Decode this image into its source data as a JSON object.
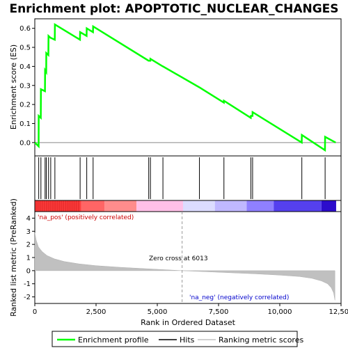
{
  "chart_data": {
    "type": "line",
    "title": "Enrichment plot: APOPTOTIC_NUCLEAR_CHANGES",
    "ylabel_top": "Enrichment score (ES)",
    "ylabel_bottom": "Ranked list metric (PreRanked)",
    "xlabel": "Rank in Ordered Dataset",
    "x_ticks": [
      "0",
      "2,500",
      "5,000",
      "7,500",
      "10,000",
      "12,500"
    ],
    "x_tick_values": [
      0,
      2500,
      5000,
      7500,
      10000,
      12500
    ],
    "es_y_ticks": [
      "0.0",
      "0.1",
      "0.2",
      "0.3",
      "0.4",
      "0.5",
      "0.6"
    ],
    "es_y_tick_values": [
      0.0,
      0.1,
      0.2,
      0.3,
      0.4,
      0.5,
      0.6
    ],
    "metric_y_ticks": [
      "-2",
      "-1",
      "0",
      "1",
      "2",
      "3",
      "4"
    ],
    "metric_y_tick_values": [
      -2,
      -1,
      0,
      1,
      2,
      3,
      4
    ],
    "xlim": [
      0,
      12500
    ],
    "es_ylim": [
      -0.07,
      0.65
    ],
    "metric_ylim": [
      -2.5,
      4.5
    ],
    "n_genes": 12300,
    "zero_cross_label": "Zero cross at 6013",
    "zero_cross": 6013,
    "pos_label": "'na_pos' (positively correlated)",
    "neg_label": "'na_neg' (negatively correlated)",
    "hits": [
      160,
      250,
      420,
      470,
      560,
      650,
      820,
      1850,
      2120,
      2380,
      4650,
      4720,
      5230,
      6720,
      7720,
      8820,
      8890,
      10900,
      11850
    ],
    "es_curve": [
      [
        0,
        0.0
      ],
      [
        155,
        -0.02
      ],
      [
        160,
        0.14
      ],
      [
        245,
        0.13
      ],
      [
        250,
        0.28
      ],
      [
        415,
        0.27
      ],
      [
        420,
        0.38
      ],
      [
        465,
        0.37
      ],
      [
        470,
        0.47
      ],
      [
        555,
        0.46
      ],
      [
        560,
        0.56
      ],
      [
        645,
        0.55
      ],
      [
        650,
        0.55
      ],
      [
        815,
        0.54
      ],
      [
        820,
        0.62
      ],
      [
        1845,
        0.54
      ],
      [
        1850,
        0.58
      ],
      [
        2115,
        0.56
      ],
      [
        2120,
        0.6
      ],
      [
        2375,
        0.58
      ],
      [
        2380,
        0.61
      ],
      [
        4645,
        0.43
      ],
      [
        4650,
        0.43
      ],
      [
        4715,
        0.43
      ],
      [
        4720,
        0.44
      ],
      [
        5225,
        0.4
      ],
      [
        5230,
        0.4
      ],
      [
        6715,
        0.29
      ],
      [
        6720,
        0.29
      ],
      [
        7715,
        0.21
      ],
      [
        7720,
        0.22
      ],
      [
        8815,
        0.13
      ],
      [
        8820,
        0.14
      ],
      [
        8885,
        0.14
      ],
      [
        8890,
        0.16
      ],
      [
        10895,
        0.0
      ],
      [
        10900,
        0.04
      ],
      [
        11845,
        -0.04
      ],
      [
        11850,
        0.03
      ],
      [
        12280,
        0.0
      ]
    ],
    "metric_curve": [
      [
        0,
        2.9
      ],
      [
        60,
        2.3
      ],
      [
        150,
        1.8
      ],
      [
        300,
        1.45
      ],
      [
        500,
        1.15
      ],
      [
        800,
        0.9
      ],
      [
        1200,
        0.7
      ],
      [
        1800,
        0.52
      ],
      [
        2500,
        0.38
      ],
      [
        3500,
        0.25
      ],
      [
        4500,
        0.15
      ],
      [
        5500,
        0.05
      ],
      [
        6013,
        0.0
      ],
      [
        7000,
        -0.08
      ],
      [
        8000,
        -0.16
      ],
      [
        9000,
        -0.24
      ],
      [
        10000,
        -0.34
      ],
      [
        10800,
        -0.45
      ],
      [
        11300,
        -0.58
      ],
      [
        11700,
        -0.78
      ],
      [
        11950,
        -1.0
      ],
      [
        12100,
        -1.3
      ],
      [
        12200,
        -1.7
      ],
      [
        12250,
        -2.25
      ]
    ],
    "heatmap_stops": [
      {
        "until": 1900,
        "color": "#ff4040"
      },
      {
        "until": 2850,
        "color": "#ff6565"
      },
      {
        "until": 4150,
        "color": "#ff8c8c"
      },
      {
        "until": 6050,
        "color": "#ffc0e8"
      },
      {
        "until": 7350,
        "color": "#dcdcff"
      },
      {
        "until": 8650,
        "color": "#c0b8ff"
      },
      {
        "until": 9750,
        "color": "#8f80ff"
      },
      {
        "until": 11700,
        "color": "#5540ee"
      },
      {
        "until": 12300,
        "color": "#2c0ccc"
      }
    ],
    "legend": [
      "Enrichment profile",
      "Hits",
      "Ranking metric scores"
    ],
    "colors": {
      "profile": "#00ff00",
      "hits": "#000000",
      "metric_fill": "#c0c0c0",
      "pos_text": "#cc0000",
      "neg_text": "#0000cc",
      "zero_line": "#999999"
    }
  }
}
